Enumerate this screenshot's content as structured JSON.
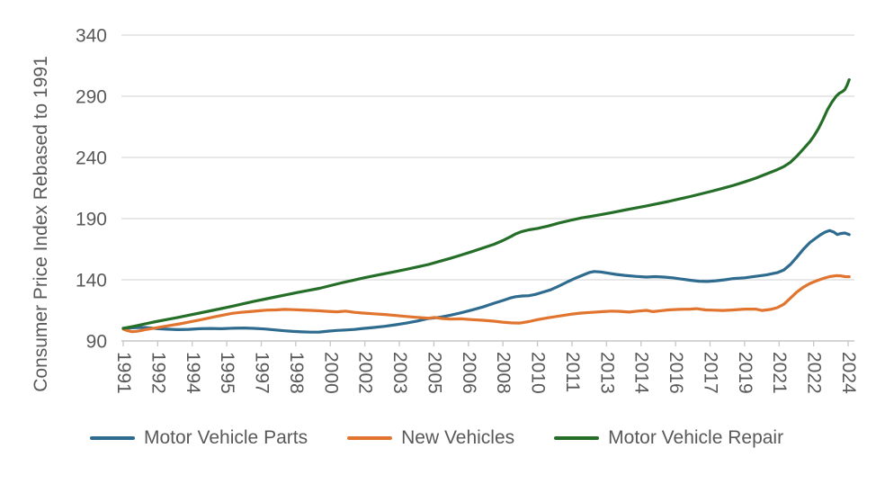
{
  "chart_data": {
    "type": "line",
    "title": "",
    "xlabel": "",
    "ylabel": "Consumer Price Index Rebased to 1991",
    "ylim": [
      90,
      340
    ],
    "y_ticks": [
      90,
      140,
      190,
      240,
      290,
      340
    ],
    "x_tick_labels": [
      "1991",
      "1992",
      "1994",
      "1995",
      "1997",
      "1998",
      "2000",
      "2002",
      "2003",
      "2005",
      "2006",
      "2008",
      "2010",
      "2011",
      "2013",
      "2014",
      "2016",
      "2017",
      "2019",
      "2021",
      "2022",
      "2024"
    ],
    "x_range_years": [
      1991,
      2024.25
    ],
    "grid": "horizontal",
    "legend_position": "bottom",
    "colors": {
      "grid": "#D9D9D9",
      "axis": "#C6C6C6",
      "tick_text": "#595959"
    },
    "series": [
      {
        "name": "Motor Vehicle Parts",
        "color": "#2E6B8F",
        "points": [
          [
            1991,
            100.3
          ],
          [
            1991.5,
            100.8
          ],
          [
            1992,
            101
          ],
          [
            1992.3,
            100.5
          ],
          [
            1992.6,
            100
          ],
          [
            1993,
            99.6
          ],
          [
            1993.5,
            99.3
          ],
          [
            1994,
            99.5
          ],
          [
            1994.5,
            100
          ],
          [
            1995,
            100.2
          ],
          [
            1995.5,
            100
          ],
          [
            1996,
            100.4
          ],
          [
            1996.5,
            100.6
          ],
          [
            1997,
            100.3
          ],
          [
            1997.5,
            99.8
          ],
          [
            1998,
            99
          ],
          [
            1998.4,
            98.3
          ],
          [
            1998.8,
            97.8
          ],
          [
            1999.2,
            97.4
          ],
          [
            1999.6,
            97.2
          ],
          [
            2000,
            97.3
          ],
          [
            2000.4,
            98
          ],
          [
            2000.8,
            98.6
          ],
          [
            2001.2,
            99
          ],
          [
            2001.6,
            99.4
          ],
          [
            2002,
            100.2
          ],
          [
            2002.5,
            101
          ],
          [
            2003,
            102
          ],
          [
            2003.5,
            103.2
          ],
          [
            2004,
            104.6
          ],
          [
            2004.5,
            106.3
          ],
          [
            2005,
            108.4
          ],
          [
            2005.3,
            108.9
          ],
          [
            2005.6,
            109.6
          ],
          [
            2006,
            111
          ],
          [
            2006.5,
            113
          ],
          [
            2007,
            115.3
          ],
          [
            2007.5,
            117.8
          ],
          [
            2008,
            120.8
          ],
          [
            2008.4,
            123
          ],
          [
            2008.8,
            125.4
          ],
          [
            2009,
            126.2
          ],
          [
            2009.3,
            126.8
          ],
          [
            2009.6,
            127
          ],
          [
            2009.9,
            128
          ],
          [
            2010.2,
            129.6
          ],
          [
            2010.6,
            131.8
          ],
          [
            2011,
            135
          ],
          [
            2011.4,
            138.5
          ],
          [
            2011.8,
            141.8
          ],
          [
            2012.1,
            144
          ],
          [
            2012.4,
            146
          ],
          [
            2012.6,
            146.8
          ],
          [
            2012.9,
            146.4
          ],
          [
            2013.2,
            145.6
          ],
          [
            2013.6,
            144.4
          ],
          [
            2014,
            143.6
          ],
          [
            2014.5,
            142.8
          ],
          [
            2015,
            142.2
          ],
          [
            2015.4,
            142.6
          ],
          [
            2015.8,
            142.2
          ],
          [
            2016.2,
            141.6
          ],
          [
            2016.6,
            140.6
          ],
          [
            2017,
            139.6
          ],
          [
            2017.4,
            138.8
          ],
          [
            2017.8,
            138.6
          ],
          [
            2018.2,
            139.2
          ],
          [
            2018.6,
            140
          ],
          [
            2019,
            141
          ],
          [
            2019.5,
            141.6
          ],
          [
            2020,
            142.8
          ],
          [
            2020.5,
            144
          ],
          [
            2021,
            145.8
          ],
          [
            2021.3,
            148
          ],
          [
            2021.6,
            152.5
          ],
          [
            2021.9,
            158.5
          ],
          [
            2022.2,
            165
          ],
          [
            2022.5,
            170.5
          ],
          [
            2022.8,
            174.5
          ],
          [
            2023,
            177
          ],
          [
            2023.2,
            179
          ],
          [
            2023.4,
            180.3
          ],
          [
            2023.6,
            179
          ],
          [
            2023.75,
            177
          ],
          [
            2023.9,
            177.8
          ],
          [
            2024.1,
            178.2
          ],
          [
            2024.3,
            177
          ]
        ]
      },
      {
        "name": "New Vehicles",
        "color": "#E1752F",
        "points": [
          [
            1991,
            99.8
          ],
          [
            1991.2,
            98.4
          ],
          [
            1991.4,
            97.6
          ],
          [
            1991.6,
            97.9
          ],
          [
            1991.8,
            98.4
          ],
          [
            1992,
            99.3
          ],
          [
            1992.4,
            100.4
          ],
          [
            1992.8,
            101.6
          ],
          [
            1993.2,
            102.8
          ],
          [
            1993.6,
            104
          ],
          [
            1994,
            105.4
          ],
          [
            1994.4,
            106.8
          ],
          [
            1994.8,
            108.2
          ],
          [
            1995.2,
            109.8
          ],
          [
            1995.6,
            111.2
          ],
          [
            1996,
            112.6
          ],
          [
            1996.4,
            113.4
          ],
          [
            1996.8,
            114
          ],
          [
            1997.2,
            114.6
          ],
          [
            1997.6,
            115.2
          ],
          [
            1998,
            115.4
          ],
          [
            1998.4,
            115.8
          ],
          [
            1998.8,
            115.6
          ],
          [
            1999.2,
            115.3
          ],
          [
            1999.6,
            115
          ],
          [
            2000,
            114.6
          ],
          [
            2000.4,
            114.2
          ],
          [
            2000.8,
            113.8
          ],
          [
            2001.2,
            114.4
          ],
          [
            2001.6,
            113.4
          ],
          [
            2002,
            112.8
          ],
          [
            2002.5,
            112.2
          ],
          [
            2003,
            111.6
          ],
          [
            2003.5,
            110.8
          ],
          [
            2004,
            110
          ],
          [
            2004.5,
            109.3
          ],
          [
            2005,
            108.6
          ],
          [
            2005.3,
            109.3
          ],
          [
            2005.6,
            108.4
          ],
          [
            2006,
            107.9
          ],
          [
            2006.5,
            108.1
          ],
          [
            2007,
            107.4
          ],
          [
            2007.5,
            106.9
          ],
          [
            2008,
            106.2
          ],
          [
            2008.4,
            105.4
          ],
          [
            2008.8,
            104.8
          ],
          [
            2009.2,
            104.6
          ],
          [
            2009.6,
            105.8
          ],
          [
            2010,
            107.4
          ],
          [
            2010.5,
            109
          ],
          [
            2011,
            110.4
          ],
          [
            2011.5,
            111.8
          ],
          [
            2012,
            112.8
          ],
          [
            2012.5,
            113.4
          ],
          [
            2013,
            114
          ],
          [
            2013.4,
            114.4
          ],
          [
            2013.8,
            114.2
          ],
          [
            2014.2,
            113.6
          ],
          [
            2014.6,
            114.4
          ],
          [
            2015,
            115
          ],
          [
            2015.3,
            114
          ],
          [
            2015.7,
            114.8
          ],
          [
            2016,
            115.4
          ],
          [
            2016.5,
            115.8
          ],
          [
            2017,
            116
          ],
          [
            2017.3,
            116.4
          ],
          [
            2017.7,
            115.4
          ],
          [
            2018,
            115.2
          ],
          [
            2018.5,
            114.9
          ],
          [
            2019,
            115.4
          ],
          [
            2019.5,
            116
          ],
          [
            2020,
            116
          ],
          [
            2020.3,
            114.9
          ],
          [
            2020.7,
            115.8
          ],
          [
            2021,
            117.2
          ],
          [
            2021.3,
            120
          ],
          [
            2021.6,
            125
          ],
          [
            2021.9,
            130
          ],
          [
            2022.2,
            134
          ],
          [
            2022.5,
            137
          ],
          [
            2022.8,
            139.2
          ],
          [
            2023.1,
            141
          ],
          [
            2023.4,
            142.6
          ],
          [
            2023.7,
            143.4
          ],
          [
            2023.9,
            143.2
          ],
          [
            2024.1,
            142.6
          ],
          [
            2024.3,
            142.5
          ]
        ]
      },
      {
        "name": "Motor Vehicle Repair",
        "color": "#256E28",
        "points": [
          [
            1991,
            100.3
          ],
          [
            1991.5,
            102
          ],
          [
            1992,
            104
          ],
          [
            1992.5,
            105.8
          ],
          [
            1993,
            107.5
          ],
          [
            1993.5,
            109.2
          ],
          [
            1994,
            111
          ],
          [
            1994.5,
            112.8
          ],
          [
            1995,
            114.6
          ],
          [
            1995.5,
            116.5
          ],
          [
            1996,
            118.4
          ],
          [
            1996.5,
            120.4
          ],
          [
            1997,
            122.4
          ],
          [
            1997.5,
            124.2
          ],
          [
            1998,
            126
          ],
          [
            1998.5,
            127.8
          ],
          [
            1999,
            129.6
          ],
          [
            1999.5,
            131.3
          ],
          [
            2000,
            133
          ],
          [
            2000.5,
            135.2
          ],
          [
            2001,
            137.4
          ],
          [
            2001.5,
            139.4
          ],
          [
            2002,
            141.4
          ],
          [
            2002.5,
            143.2
          ],
          [
            2003,
            145
          ],
          [
            2003.5,
            146.8
          ],
          [
            2004,
            148.6
          ],
          [
            2004.5,
            150.5
          ],
          [
            2005,
            152.5
          ],
          [
            2005.5,
            155
          ],
          [
            2006,
            157.5
          ],
          [
            2006.5,
            160.2
          ],
          [
            2007,
            163
          ],
          [
            2007.5,
            166
          ],
          [
            2008,
            169
          ],
          [
            2008.4,
            172
          ],
          [
            2008.8,
            175.5
          ],
          [
            2009,
            177.5
          ],
          [
            2009.3,
            179.5
          ],
          [
            2009.6,
            180.8
          ],
          [
            2010,
            182
          ],
          [
            2010.5,
            184
          ],
          [
            2011,
            186.5
          ],
          [
            2011.5,
            188.5
          ],
          [
            2012,
            190.5
          ],
          [
            2012.5,
            192
          ],
          [
            2013,
            193.5
          ],
          [
            2013.5,
            195.2
          ],
          [
            2014,
            197
          ],
          [
            2014.5,
            198.7
          ],
          [
            2015,
            200.4
          ],
          [
            2015.5,
            202.2
          ],
          [
            2016,
            204
          ],
          [
            2016.5,
            206
          ],
          [
            2017,
            208
          ],
          [
            2017.5,
            210.2
          ],
          [
            2018,
            212.4
          ],
          [
            2018.5,
            214.8
          ],
          [
            2019,
            217.2
          ],
          [
            2019.5,
            220
          ],
          [
            2020,
            223
          ],
          [
            2020.5,
            226.5
          ],
          [
            2021,
            230
          ],
          [
            2021.3,
            232.5
          ],
          [
            2021.6,
            236
          ],
          [
            2021.9,
            241
          ],
          [
            2022.1,
            245
          ],
          [
            2022.3,
            249
          ],
          [
            2022.5,
            253
          ],
          [
            2022.7,
            258
          ],
          [
            2022.9,
            264
          ],
          [
            2023.1,
            271
          ],
          [
            2023.3,
            279
          ],
          [
            2023.5,
            285
          ],
          [
            2023.7,
            290
          ],
          [
            2023.85,
            292.5
          ],
          [
            2024,
            294
          ],
          [
            2024.1,
            295.5
          ],
          [
            2024.2,
            299
          ],
          [
            2024.3,
            303.5
          ]
        ]
      }
    ]
  }
}
